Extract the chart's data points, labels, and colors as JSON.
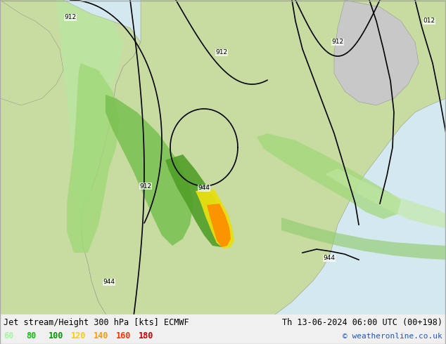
{
  "title_left": "Jet stream/Height 300 hPa [kts] ECMWF",
  "title_right": "Th 13-06-2024 06:00 UTC (00+198)",
  "copyright": "© weatheronline.co.uk",
  "legend_values": [
    "60",
    "80",
    "100",
    "120",
    "140",
    "160",
    "180"
  ],
  "legend_colors": [
    "#99ff99",
    "#00cc00",
    "#009900",
    "#ffcc00",
    "#ff9900",
    "#ff3300",
    "#cc0000"
  ],
  "fig_width": 6.34,
  "fig_height": 4.9,
  "dpi": 100,
  "bg_color": "#e8e8e8",
  "land_color": "#d0e8b0",
  "ocean_color": "#e0e8f0",
  "contour_color": "black",
  "contour_labels": [
    "912",
    "944"
  ],
  "map_bg": "#c8d8e8"
}
